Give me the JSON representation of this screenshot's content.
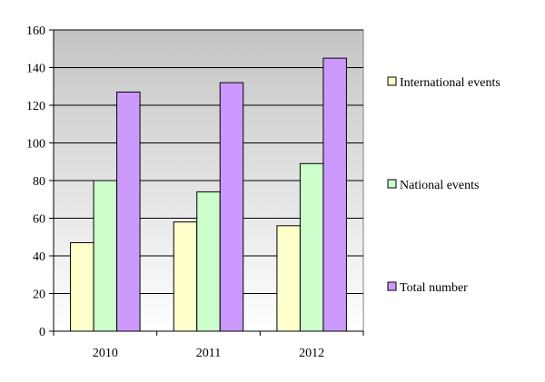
{
  "chart_data": {
    "type": "bar",
    "categories": [
      "2010",
      "2011",
      "2012"
    ],
    "series": [
      {
        "name": "International events",
        "values": [
          47,
          58,
          56
        ],
        "color": "#FFFFCC"
      },
      {
        "name": "National events",
        "values": [
          80,
          74,
          89
        ],
        "color": "#CCFFCC"
      },
      {
        "name": "Total number",
        "values": [
          127,
          132,
          145
        ],
        "color": "#CC99FF"
      }
    ],
    "ylim": [
      0,
      160
    ],
    "yticks": [
      0,
      20,
      40,
      60,
      80,
      100,
      120,
      140,
      160
    ],
    "grid": true,
    "legend_position": "right",
    "title": "",
    "xlabel": "",
    "ylabel": "",
    "plot_background": "#C0C0C0"
  }
}
